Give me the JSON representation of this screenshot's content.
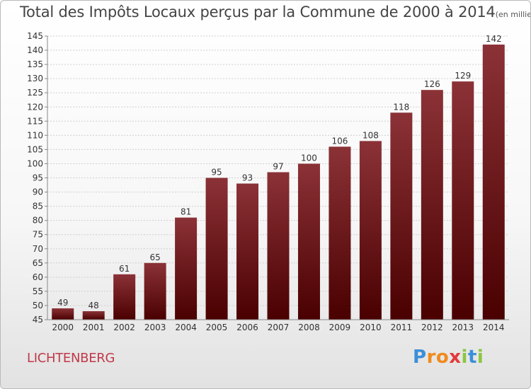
{
  "chart_data": {
    "type": "bar",
    "title": "Total des Impôts Locaux perçus par la Commune de 2000 à 2014",
    "title_unit": "(en milliers d'€)",
    "categories": [
      "2000",
      "2001",
      "2002",
      "2003",
      "2004",
      "2005",
      "2006",
      "2007",
      "2008",
      "2009",
      "2010",
      "2011",
      "2012",
      "2013",
      "2014"
    ],
    "values": [
      49,
      48,
      61,
      65,
      81,
      95,
      93,
      97,
      100,
      106,
      108,
      118,
      126,
      129,
      142
    ],
    "ylim": [
      45,
      145
    ],
    "yticks": [
      45,
      50,
      55,
      60,
      65,
      70,
      75,
      80,
      85,
      90,
      95,
      100,
      105,
      110,
      115,
      120,
      125,
      130,
      135,
      140,
      145
    ],
    "grid": true,
    "bar_color_top": "#8b3237",
    "bar_color_bottom": "#4a0000"
  },
  "footer": {
    "commune": "LICHTENBERG",
    "logo_letters": [
      {
        "ch": "P",
        "color": "#3a8fd8"
      },
      {
        "ch": "r",
        "color": "#f08a1c"
      },
      {
        "ch": "o",
        "color": "#f08a1c"
      },
      {
        "ch": "x",
        "color": "#e23a3a"
      },
      {
        "ch": "i",
        "color": "#8cc63f"
      },
      {
        "ch": "t",
        "color": "#3a8fd8"
      },
      {
        "ch": "i",
        "color": "#8cc63f"
      }
    ]
  }
}
